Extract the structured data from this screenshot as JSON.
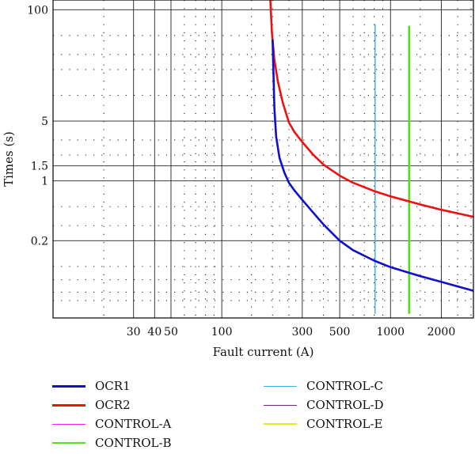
{
  "chart_data": {
    "type": "line",
    "log_x": true,
    "log_y": true,
    "xlabel": "Fault current (A)",
    "ylabel": "Times (s)",
    "xlim": [
      10,
      3100
    ],
    "ylim": [
      0.025,
      130
    ],
    "x_ticks": [
      {
        "value": 30,
        "label": "30"
      },
      {
        "value": 40,
        "label": "40"
      },
      {
        "value": 50,
        "label": "50"
      },
      {
        "value": 100,
        "label": "100"
      },
      {
        "value": 300,
        "label": "300"
      },
      {
        "value": 500,
        "label": "500"
      },
      {
        "value": 1000,
        "label": "1000"
      },
      {
        "value": 2000,
        "label": "2000"
      }
    ],
    "y_ticks": [
      {
        "value": 100,
        "label": "100"
      },
      {
        "value": 5,
        "label": "5"
      },
      {
        "value": 1.5,
        "label": "1.5"
      },
      {
        "value": 1,
        "label": "1"
      },
      {
        "value": 0.2,
        "label": "0.2"
      }
    ],
    "grid": true,
    "grid_style": "dotted minor, solid major",
    "legend_position": "bottom",
    "series": [
      {
        "name": "OCR1",
        "color": "#1010cc",
        "width": 2.6,
        "x": [
          200,
          205,
          210,
          220,
          235,
          250,
          270,
          300,
          340,
          400,
          500,
          600,
          800,
          1000,
          1500,
          2000,
          3100
        ],
        "y": [
          45,
          7.1,
          3.3,
          1.85,
          1.25,
          0.95,
          0.77,
          0.6,
          0.45,
          0.31,
          0.2,
          0.155,
          0.117,
          0.098,
          0.077,
          0.066,
          0.052
        ]
      },
      {
        "name": "OCR2",
        "color": "#ee1111",
        "width": 2.6,
        "x": [
          194,
          198,
          205,
          215,
          230,
          250,
          270,
          300,
          350,
          400,
          500,
          600,
          800,
          1000,
          1500,
          2000,
          3100
        ],
        "y": [
          130,
          55,
          26,
          14.5,
          8.2,
          4.8,
          3.7,
          2.85,
          2.0,
          1.55,
          1.15,
          0.95,
          0.76,
          0.66,
          0.53,
          0.46,
          0.38
        ]
      },
      {
        "name": "CONTROL-A",
        "color": "#ee22ee",
        "width": 1.4,
        "x": [],
        "y": []
      },
      {
        "name": "CONTROL-B",
        "color": "#55dd22",
        "width": 2.6,
        "x": [
          1290,
          1290
        ],
        "y": [
          0.028,
          65
        ]
      },
      {
        "name": "CONTROL-C",
        "color": "#44aadd",
        "width": 1.4,
        "x": [
          810,
          810
        ],
        "y": [
          0.028,
          68
        ]
      },
      {
        "name": "CONTROL-D",
        "color": "#772288",
        "width": 1.4,
        "x": [],
        "y": []
      },
      {
        "name": "CONTROL-E",
        "color": "#e6ea22",
        "width": 1.4,
        "x": [
          1300,
          1300
        ],
        "y": [
          0.028,
          60
        ]
      }
    ]
  },
  "legend": {
    "items": [
      {
        "label": "OCR1",
        "color": "#1010cc",
        "width": 3
      },
      {
        "label": "OCR2",
        "color": "#ee1111",
        "width": 3
      },
      {
        "label": "CONTROL-A",
        "color": "#ee22ee",
        "width": 1.5
      },
      {
        "label": "CONTROL-B",
        "color": "#55dd22",
        "width": 2
      },
      {
        "label": "CONTROL-C",
        "color": "#44aadd",
        "width": 1.5
      },
      {
        "label": "CONTROL-D",
        "color": "#772288",
        "width": 1.5
      },
      {
        "label": "CONTROL-E",
        "color": "#e6ea22",
        "width": 2
      }
    ]
  }
}
